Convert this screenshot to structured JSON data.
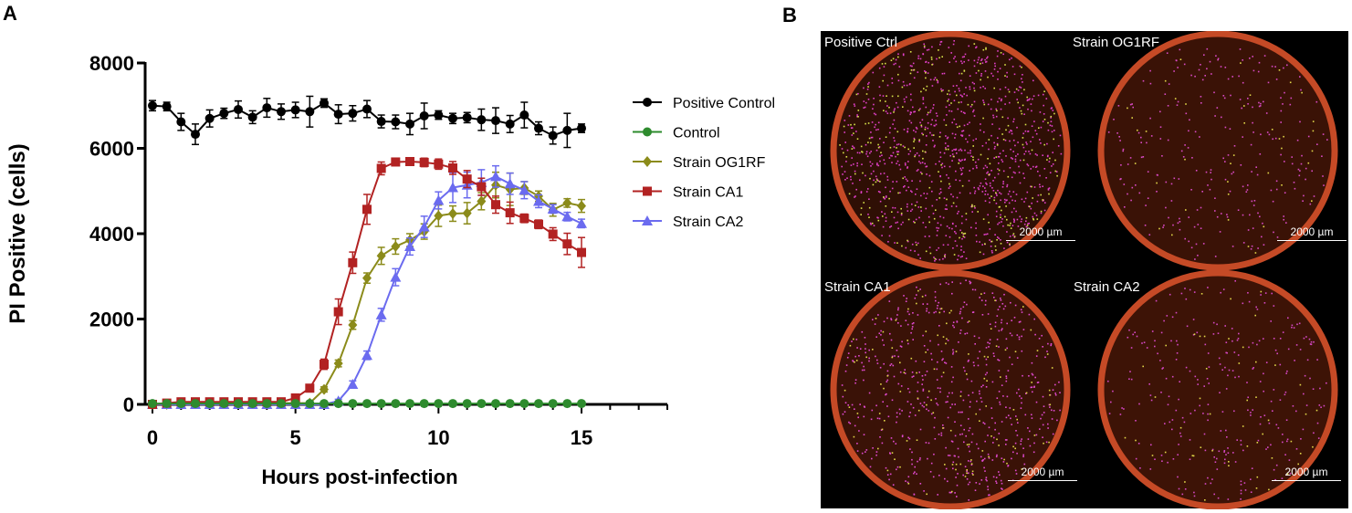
{
  "panel_a_letter": "A",
  "panel_b_letter": "B",
  "chart_data": {
    "type": "line",
    "xlabel": "Hours post-infection",
    "ylabel": "PI Positive (cells)",
    "xlim": [
      0,
      18
    ],
    "ylim": [
      0,
      8000
    ],
    "xticks": [
      "0",
      "5",
      "10",
      "15"
    ],
    "yticks": [
      "0",
      "2000",
      "4000",
      "6000",
      "8000"
    ],
    "x": [
      0,
      0.5,
      1,
      1.5,
      2,
      2.5,
      3,
      3.5,
      4,
      4.5,
      5,
      5.5,
      6,
      6.5,
      7,
      7.5,
      8,
      8.5,
      9,
      9.5,
      10,
      10.5,
      11,
      11.5,
      12,
      12.5,
      13,
      13.5,
      14,
      14.5,
      15
    ],
    "legend_position": "right",
    "series": [
      {
        "name": "Positive Control",
        "color": "#000000",
        "marker": "circle",
        "values": [
          7000,
          6980,
          6620,
          6330,
          6700,
          6820,
          6910,
          6730,
          6950,
          6860,
          6900,
          6860,
          7060,
          6800,
          6820,
          6920,
          6630,
          6620,
          6570,
          6760,
          6780,
          6700,
          6720,
          6670,
          6650,
          6570,
          6780,
          6470,
          6300,
          6420,
          6470
        ],
        "errors": [
          120,
          100,
          200,
          240,
          200,
          120,
          200,
          150,
          220,
          180,
          180,
          360,
          100,
          220,
          180,
          200,
          150,
          160,
          250,
          300,
          100,
          120,
          120,
          250,
          300,
          200,
          300,
          150,
          200,
          400,
          100
        ]
      },
      {
        "name": "Control",
        "color": "#2e8b2e",
        "marker": "circle",
        "values": [
          20,
          20,
          20,
          20,
          20,
          20,
          20,
          20,
          20,
          20,
          20,
          20,
          20,
          20,
          20,
          20,
          20,
          20,
          20,
          20,
          20,
          20,
          20,
          20,
          20,
          20,
          20,
          20,
          20,
          20,
          20
        ],
        "errors": [
          10,
          10,
          10,
          10,
          10,
          10,
          10,
          10,
          10,
          10,
          10,
          10,
          10,
          10,
          10,
          10,
          10,
          10,
          10,
          10,
          10,
          10,
          10,
          10,
          10,
          10,
          10,
          10,
          10,
          10,
          10
        ]
      },
      {
        "name": "Strain OG1RF",
        "color": "#8b8b1a",
        "marker": "diamond",
        "values": [
          0,
          0,
          30,
          30,
          30,
          30,
          30,
          30,
          30,
          30,
          30,
          30,
          350,
          960,
          1860,
          2960,
          3480,
          3700,
          3850,
          4050,
          4420,
          4470,
          4480,
          4760,
          5140,
          5040,
          5070,
          4880,
          4560,
          4720,
          4650
        ],
        "errors": [
          20,
          20,
          20,
          20,
          20,
          20,
          20,
          20,
          20,
          20,
          20,
          20,
          60,
          80,
          100,
          120,
          200,
          180,
          150,
          180,
          250,
          180,
          250,
          200,
          300,
          380,
          150,
          120,
          150,
          100,
          150
        ]
      },
      {
        "name": "Strain CA1",
        "color": "#b22222",
        "marker": "square",
        "values": [
          0,
          30,
          60,
          60,
          60,
          60,
          60,
          60,
          60,
          60,
          150,
          380,
          940,
          2170,
          3320,
          4570,
          5530,
          5680,
          5690,
          5670,
          5630,
          5540,
          5280,
          5100,
          4680,
          4490,
          4360,
          4220,
          3990,
          3760,
          3560
        ],
        "errors": [
          20,
          20,
          30,
          30,
          30,
          30,
          30,
          30,
          30,
          30,
          40,
          60,
          120,
          300,
          250,
          350,
          150,
          80,
          80,
          100,
          120,
          150,
          200,
          200,
          200,
          250,
          100,
          100,
          150,
          250,
          350
        ]
      },
      {
        "name": "Strain CA2",
        "color": "#6b6bef",
        "marker": "triangle",
        "values": [
          0,
          0,
          0,
          0,
          0,
          0,
          0,
          0,
          0,
          0,
          0,
          0,
          0,
          80,
          470,
          1150,
          2100,
          2980,
          3700,
          4160,
          4780,
          5080,
          5140,
          5200,
          5340,
          5170,
          5020,
          4760,
          4580,
          4400,
          4240
        ],
        "errors": [
          10,
          10,
          10,
          10,
          10,
          10,
          10,
          10,
          10,
          10,
          10,
          10,
          10,
          40,
          80,
          100,
          150,
          200,
          200,
          250,
          200,
          350,
          300,
          300,
          250,
          250,
          200,
          150,
          100,
          100,
          100
        ]
      }
    ]
  },
  "micrographs": [
    {
      "label": "Positive Ctrl",
      "scale": "2000 µm",
      "base": "#2f0f05",
      "rim": "#c54a26",
      "dot_color": "#e040c8",
      "speck_color": "#d7e34a",
      "dot_count": 900,
      "speck_count": 260
    },
    {
      "label": "Strain OG1RF",
      "scale": "2000 µm",
      "base": "#3a1206",
      "rim": "#c54a26",
      "dot_color": "#d84ac4",
      "speck_color": "#e0d648",
      "dot_count": 260,
      "speck_count": 40
    },
    {
      "label": "Strain CA1",
      "scale": "2000 µm",
      "base": "#3a1207",
      "rim": "#c54a26",
      "dot_color": "#e04ad0",
      "speck_color": "#e0d648",
      "dot_count": 620,
      "speck_count": 120
    },
    {
      "label": "Strain CA2",
      "scale": "2000 µm",
      "base": "#3d1306",
      "rim": "#c54a26",
      "dot_color": "#d448c4",
      "speck_color": "#e0d648",
      "dot_count": 280,
      "speck_count": 50
    }
  ]
}
